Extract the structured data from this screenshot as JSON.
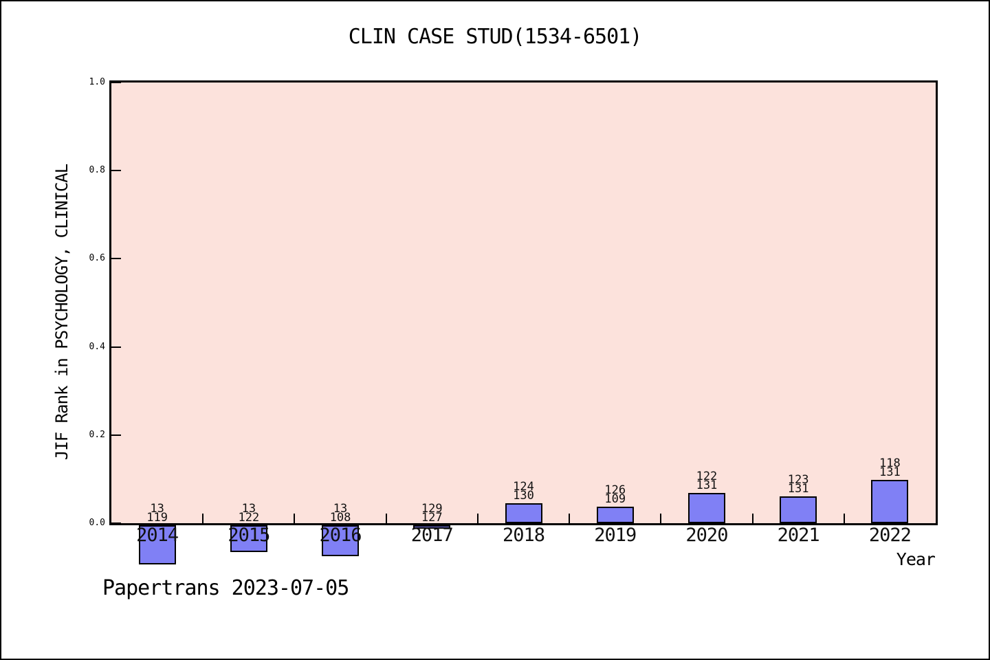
{
  "chart_data": {
    "type": "bar",
    "title": "CLIN CASE STUD(1534-6501)",
    "xlabel": "Year",
    "ylabel": "JIF Rank in PSYCHOLOGY, CLINICAL",
    "annotation": "Papertrans 2023-07-05",
    "categories": [
      "2014",
      "2015",
      "2016",
      "2017",
      "2018",
      "2019",
      "2020",
      "2021",
      "2022"
    ],
    "values": [
      -0.093,
      -0.066,
      -0.075,
      -0.013,
      0.046,
      0.038,
      0.069,
      0.061,
      0.099
    ],
    "bar_labels": [
      [
        "13",
        "119"
      ],
      [
        "13",
        "122"
      ],
      [
        "13",
        "108"
      ],
      [
        "129",
        "127"
      ],
      [
        "124",
        "130"
      ],
      [
        "126",
        "109"
      ],
      [
        "122",
        "131"
      ],
      [
        "123",
        "131"
      ],
      [
        "118",
        "131"
      ]
    ],
    "ylim": [
      0.0,
      1.0
    ],
    "y_ticks": [
      "0.0",
      "0.2",
      "0.4",
      "0.6",
      "0.8",
      "1.0"
    ],
    "grid": false,
    "legend": null,
    "colors": {
      "plot_bg": "#fce2dc",
      "bar_fill": "#8080f5",
      "bar_border": "#000000",
      "axis": "#000000"
    }
  }
}
